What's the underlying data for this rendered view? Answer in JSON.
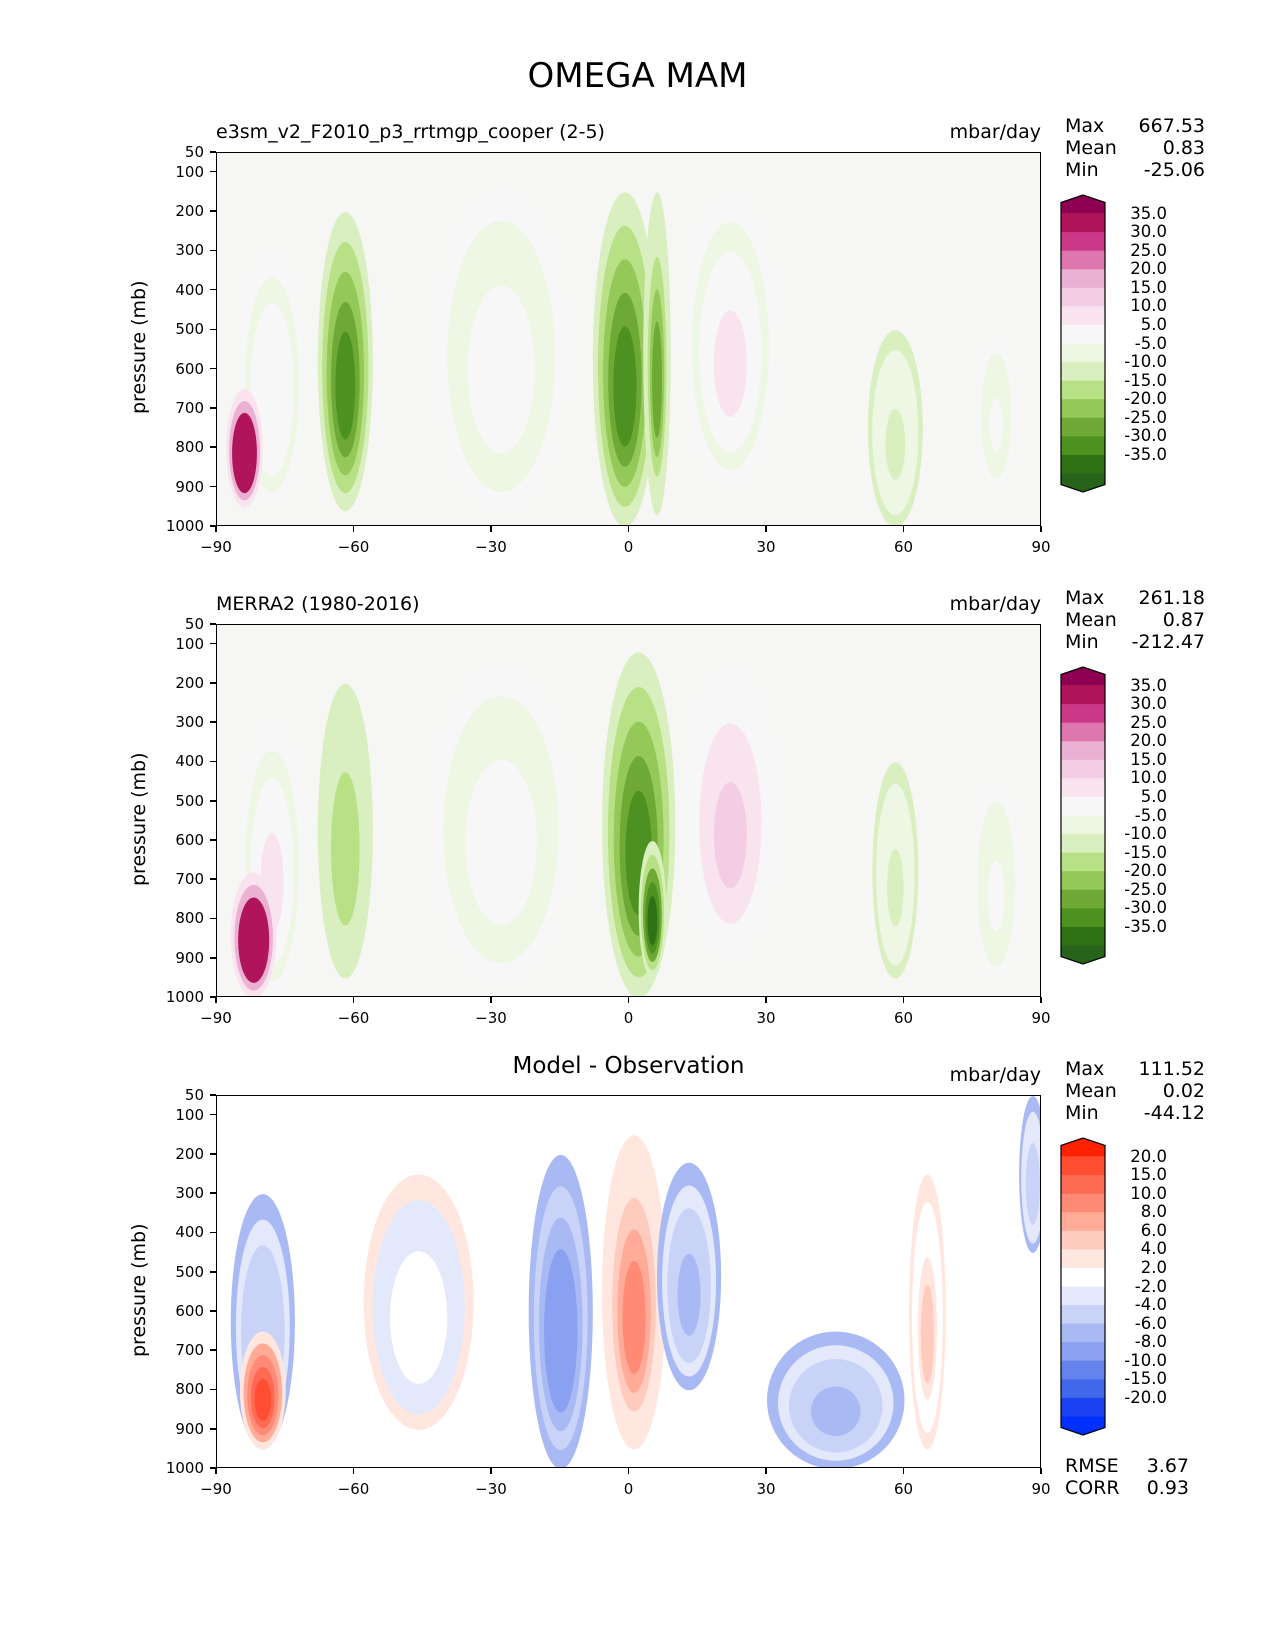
{
  "figure": {
    "title": "OMEGA MAM"
  },
  "axes": {
    "ylabel": "pressure (mb)",
    "yticks": [
      "50",
      "100",
      "200",
      "300",
      "400",
      "500",
      "600",
      "700",
      "800",
      "900",
      "1000"
    ],
    "xticks": [
      "−90",
      "−60",
      "−30",
      "0",
      "30",
      "60",
      "90"
    ]
  },
  "panels": [
    {
      "title": "e3sm_v2_F2010_p3_rrtmgp_cooper (2-5)",
      "units": "mbar/day",
      "stats": {
        "max_label": "Max",
        "max": "667.53",
        "mean_label": "Mean",
        "mean": "0.83",
        "min_label": "Min",
        "min": "-25.06"
      },
      "colorbar": [
        "35.0",
        "30.0",
        "25.0",
        "20.0",
        "15.0",
        "10.0",
        "5.0",
        "-5.0",
        "-10.0",
        "-15.0",
        "-20.0",
        "-25.0",
        "-30.0",
        "-35.0"
      ]
    },
    {
      "title": "MERRA2 (1980-2016)",
      "units": "mbar/day",
      "stats": {
        "max_label": "Max",
        "max": "261.18",
        "mean_label": "Mean",
        "mean": "0.87",
        "min_label": "Min",
        "min": "-212.47"
      },
      "colorbar": [
        "35.0",
        "30.0",
        "25.0",
        "20.0",
        "15.0",
        "10.0",
        "5.0",
        "-5.0",
        "-10.0",
        "-15.0",
        "-20.0",
        "-25.0",
        "-30.0",
        "-35.0"
      ]
    },
    {
      "title": "Model - Observation",
      "units": "mbar/day",
      "stats": {
        "max_label": "Max",
        "max": "111.52",
        "mean_label": "Mean",
        "mean": "0.02",
        "min_label": "Min",
        "min": "-44.12"
      },
      "colorbar": [
        "20.0",
        "15.0",
        "10.0",
        "8.0",
        "6.0",
        "4.0",
        "2.0",
        "-2.0",
        "-4.0",
        "-6.0",
        "-8.0",
        "-10.0",
        "-15.0",
        "-20.0"
      ],
      "extra": {
        "rmse_label": "RMSE",
        "rmse": "3.67",
        "corr_label": "CORR",
        "corr": "0.93"
      }
    }
  ],
  "colors": {
    "pg": [
      "#8e0152",
      "#b0155c",
      "#cb3887",
      "#de77ae",
      "#eab1d2",
      "#f3cde4",
      "#f9e3ef",
      "#f7f7f7",
      "#eef6e4",
      "#d9efc0",
      "#b8e186",
      "#94c95a",
      "#6ea835",
      "#4d9221",
      "#2f7216",
      "#276419"
    ],
    "diff": [
      "#ff2200",
      "#ff4e32",
      "#ff6b52",
      "#ff8a75",
      "#ffab98",
      "#ffcbbe",
      "#ffe6df",
      "#ffffff",
      "#e3e9fb",
      "#c8d3f7",
      "#a9b9f3",
      "#8aa0f0",
      "#6583ec",
      "#4168ea",
      "#1c43f2",
      "#0030ff"
    ],
    "bg_pg": "#f6f6f4",
    "bg_diff": "#ffffff"
  },
  "chart_data": [
    {
      "type": "heatmap",
      "title": "e3sm_v2_F2010_p3_rrtmgp_cooper (2-5)",
      "xlabel": "",
      "ylabel": "pressure (mb)",
      "xlim": [
        -90,
        90
      ],
      "ylim": [
        1000,
        50
      ],
      "levels": [
        -35,
        -30,
        -25,
        -20,
        -15,
        -10,
        -5,
        5,
        10,
        15,
        20,
        25,
        30,
        35
      ],
      "features": [
        {
          "lat": -62,
          "p_top": 200,
          "p_bot": 960,
          "width": 12,
          "value": -30
        },
        {
          "lat": -1,
          "p_top": 150,
          "p_bot": 1000,
          "width": 14,
          "value": -28
        },
        {
          "lat": 6,
          "p_top": 150,
          "p_bot": 970,
          "width": 6,
          "value": -25
        },
        {
          "lat": -28,
          "p_top": 140,
          "p_bot": 960,
          "width": 28,
          "value": 8
        },
        {
          "lat": 22,
          "p_top": 150,
          "p_bot": 900,
          "width": 20,
          "value": 12
        },
        {
          "lat": -78,
          "p_top": 300,
          "p_bot": 950,
          "width": 14,
          "value": 9
        },
        {
          "lat": -84,
          "p_top": 650,
          "p_bot": 950,
          "width": 8,
          "value": 60
        },
        {
          "lat": 58,
          "p_top": 500,
          "p_bot": 1000,
          "width": 12,
          "value": -6
        },
        {
          "lat": 80,
          "p_top": 520,
          "p_bot": 900,
          "width": 8,
          "value": 6
        }
      ]
    },
    {
      "type": "heatmap",
      "title": "MERRA2 (1980-2016)",
      "xlabel": "",
      "ylabel": "pressure (mb)",
      "xlim": [
        -90,
        90
      ],
      "ylim": [
        1000,
        50
      ],
      "levels": [
        -35,
        -30,
        -25,
        -20,
        -15,
        -10,
        -5,
        5,
        10,
        15,
        20,
        25,
        30,
        35
      ],
      "features": [
        {
          "lat": -62,
          "p_top": 200,
          "p_bot": 950,
          "width": 12,
          "value": -15
        },
        {
          "lat": 2,
          "p_top": 120,
          "p_bot": 1000,
          "width": 16,
          "value": -30
        },
        {
          "lat": 5,
          "p_top": 600,
          "p_bot": 950,
          "width": 6,
          "value": -35
        },
        {
          "lat": -28,
          "p_top": 150,
          "p_bot": 960,
          "width": 30,
          "value": 8
        },
        {
          "lat": 22,
          "p_top": 150,
          "p_bot": 900,
          "width": 20,
          "value": 18
        },
        {
          "lat": -78,
          "p_top": 300,
          "p_bot": 1000,
          "width": 14,
          "value": 10
        },
        {
          "lat": -82,
          "p_top": 680,
          "p_bot": 1000,
          "width": 10,
          "value": 60
        },
        {
          "lat": 58,
          "p_top": 400,
          "p_bot": 950,
          "width": 10,
          "value": -6
        },
        {
          "lat": 80,
          "p_top": 450,
          "p_bot": 950,
          "width": 10,
          "value": 6
        }
      ]
    },
    {
      "type": "heatmap",
      "title": "Model - Observation",
      "xlabel": "",
      "ylabel": "pressure (mb)",
      "xlim": [
        -90,
        90
      ],
      "ylim": [
        1000,
        50
      ],
      "levels": [
        -20,
        -15,
        -10,
        -8,
        -6,
        -4,
        -2,
        2,
        4,
        6,
        8,
        10,
        15,
        20
      ],
      "features": [
        {
          "lat": -15,
          "p_top": 200,
          "p_bot": 1000,
          "width": 14,
          "value": -8
        },
        {
          "lat": 1,
          "p_top": 150,
          "p_bot": 950,
          "width": 14,
          "value": 10
        },
        {
          "lat": 13,
          "p_top": 220,
          "p_bot": 800,
          "width": 14,
          "value": -5
        },
        {
          "lat": -46,
          "p_top": 250,
          "p_bot": 900,
          "width": 24,
          "value": 3
        },
        {
          "lat": -80,
          "p_top": 300,
          "p_bot": 950,
          "width": 14,
          "value": -4
        },
        {
          "lat": -80,
          "p_top": 650,
          "p_bot": 950,
          "width": 10,
          "value": 20
        },
        {
          "lat": 65,
          "p_top": 250,
          "p_bot": 950,
          "width": 8,
          "value": 6
        },
        {
          "lat": 45,
          "p_top": 650,
          "p_bot": 1000,
          "width": 30,
          "value": -5
        },
        {
          "lat": 88,
          "p_top": 50,
          "p_bot": 450,
          "width": 6,
          "value": -3
        }
      ]
    }
  ]
}
